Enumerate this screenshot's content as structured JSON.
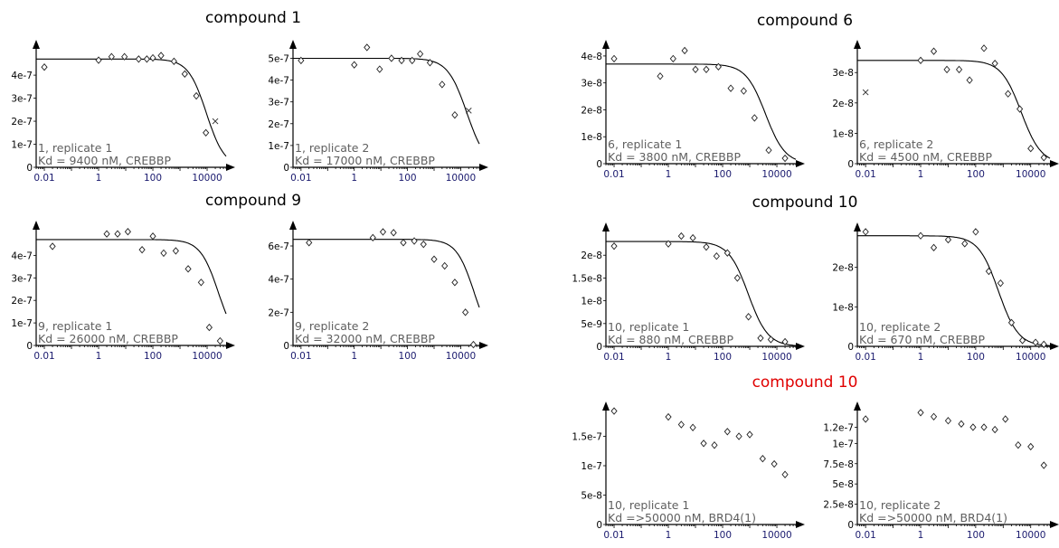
{
  "colors": {
    "title": "#000000",
    "title_alert": "#e00000",
    "annotation": "#5f5f5f",
    "axis": "#000000",
    "tick_label": "#1a1a6e"
  },
  "groups": [
    {
      "title": "compound 1",
      "color": "#000000"
    },
    {
      "title": "compound 6",
      "color": "#000000"
    },
    {
      "title": "compound 9",
      "color": "#000000"
    },
    {
      "title": "compound 10",
      "color": "#000000"
    },
    {
      "title": "compound 10",
      "color": "#e00000"
    }
  ],
  "chart_data": [
    {
      "type": "scatter",
      "group": "compound 1",
      "scale_x": "log",
      "xlim": [
        0.005,
        50000
      ],
      "ylim": [
        0,
        5.3e-07
      ],
      "xticks": [
        0.01,
        1,
        100,
        10000
      ],
      "xtick_labels": [
        "0.01",
        "1",
        "100",
        "10000"
      ],
      "yticks": [
        0,
        1e-07,
        2e-07,
        3e-07,
        4e-07
      ],
      "ytick_labels": [
        "0",
        "1e-7",
        "2e-7",
        "3e-7",
        "4e-7"
      ],
      "annotation": [
        "1,  replicate 1",
        "Kd =  9400 nM, CREBBP"
      ],
      "points": [
        [
          0.01,
          4.35e-07
        ],
        [
          1,
          4.65e-07
        ],
        [
          3,
          4.8e-07
        ],
        [
          9,
          4.8e-07
        ],
        [
          30,
          4.7e-07
        ],
        [
          60,
          4.7e-07
        ],
        [
          100,
          4.75e-07
        ],
        [
          200,
          4.85e-07
        ],
        [
          600,
          4.6e-07
        ],
        [
          1500,
          4.05e-07
        ],
        [
          4000,
          3.1e-07
        ],
        [
          9000,
          1.5e-07
        ],
        [
          20000,
          2e-07
        ]
      ],
      "outliers": [
        [
          20000,
          2e-07
        ]
      ],
      "curve": {
        "top": 4.7e-07,
        "bottom": 0,
        "ic50": 9400,
        "hill": 1.3
      }
    },
    {
      "type": "scatter",
      "group": "compound 1",
      "scale_x": "log",
      "xlim": [
        0.005,
        50000
      ],
      "ylim": [
        0,
        5.6e-07
      ],
      "xticks": [
        0.01,
        1,
        100,
        10000
      ],
      "xtick_labels": [
        "0.01",
        "1",
        "100",
        "10000"
      ],
      "yticks": [
        0,
        1e-07,
        2e-07,
        3e-07,
        4e-07,
        5e-07
      ],
      "ytick_labels": [
        "0",
        "1e-7",
        "2e-7",
        "3e-7",
        "4e-7",
        "5e-7"
      ],
      "annotation": [
        "1,  replicate 2",
        "Kd = 17000 nM, CREBBP"
      ],
      "points": [
        [
          0.01,
          4.9e-07
        ],
        [
          1,
          4.7e-07
        ],
        [
          3,
          5.5e-07
        ],
        [
          9,
          4.5e-07
        ],
        [
          25,
          5e-07
        ],
        [
          60,
          4.9e-07
        ],
        [
          150,
          4.9e-07
        ],
        [
          300,
          5.2e-07
        ],
        [
          700,
          4.8e-07
        ],
        [
          2000,
          3.8e-07
        ],
        [
          6000,
          2.4e-07
        ],
        [
          20000,
          2.6e-07
        ]
      ],
      "outliers": [
        [
          20000,
          2.6e-07
        ]
      ],
      "curve": {
        "top": 5e-07,
        "bottom": 0,
        "ic50": 17000,
        "hill": 1.2
      }
    },
    {
      "type": "scatter",
      "group": "compound 6",
      "scale_x": "log",
      "xlim": [
        0.005,
        50000
      ],
      "ylim": [
        0,
        4.4e-08
      ],
      "xticks": [
        0.01,
        1,
        100,
        10000
      ],
      "xtick_labels": [
        "0.01",
        "1",
        "100",
        "10000"
      ],
      "yticks": [
        0,
        1e-08,
        2e-08,
        3e-08,
        4e-08
      ],
      "ytick_labels": [
        "0",
        "1e-8",
        "2e-8",
        "3e-8",
        "4e-8"
      ],
      "annotation": [
        "6,  replicate 1",
        "Kd =  3800 nM, CREBBP"
      ],
      "points": [
        [
          0.01,
          3.9e-08
        ],
        [
          0.5,
          3.25e-08
        ],
        [
          1.5,
          3.9e-08
        ],
        [
          4,
          4.2e-08
        ],
        [
          10,
          3.5e-08
        ],
        [
          25,
          3.5e-08
        ],
        [
          70,
          3.6e-08
        ],
        [
          200,
          2.8e-08
        ],
        [
          600,
          2.7e-08
        ],
        [
          1500,
          1.7e-08
        ],
        [
          5000,
          5e-09
        ],
        [
          20000,
          2e-09
        ]
      ],
      "outliers": [],
      "curve": {
        "top": 3.7e-08,
        "bottom": 0,
        "ic50": 3800,
        "hill": 1.2
      }
    },
    {
      "type": "scatter",
      "group": "compound 6",
      "scale_x": "log",
      "xlim": [
        0.005,
        50000
      ],
      "ylim": [
        0,
        3.9e-08
      ],
      "xticks": [
        0.01,
        1,
        100,
        10000
      ],
      "xtick_labels": [
        "0.01",
        "1",
        "100",
        "10000"
      ],
      "yticks": [
        0,
        1e-08,
        2e-08,
        3e-08
      ],
      "ytick_labels": [
        "0",
        "1e-8",
        "2e-8",
        "3e-8"
      ],
      "annotation": [
        "6,  replicate 2",
        "Kd =  4500 nM, CREBBP"
      ],
      "points": [
        [
          0.01,
          2.35e-08
        ],
        [
          1,
          3.4e-08
        ],
        [
          3,
          3.7e-08
        ],
        [
          9,
          3.1e-08
        ],
        [
          25,
          3.1e-08
        ],
        [
          60,
          2.75e-08
        ],
        [
          200,
          3.8e-08
        ],
        [
          500,
          3.3e-08
        ],
        [
          1500,
          2.3e-08
        ],
        [
          4000,
          1.8e-08
        ],
        [
          10000,
          5e-09
        ],
        [
          30000,
          2e-09
        ]
      ],
      "outliers": [
        [
          0.01,
          2.35e-08
        ]
      ],
      "curve": {
        "top": 3.4e-08,
        "bottom": 0,
        "ic50": 4500,
        "hill": 1.2
      }
    },
    {
      "type": "scatter",
      "group": "compound 9",
      "scale_x": "log",
      "xlim": [
        0.005,
        50000
      ],
      "ylim": [
        0,
        5.3e-07
      ],
      "xticks": [
        0.01,
        1,
        100,
        10000
      ],
      "xtick_labels": [
        "0.01",
        "1",
        "100",
        "10000"
      ],
      "yticks": [
        0,
        1e-07,
        2e-07,
        3e-07,
        4e-07
      ],
      "ytick_labels": [
        "0",
        "1e-7",
        "2e-7",
        "3e-7",
        "4e-7"
      ],
      "annotation": [
        "9,  replicate 1",
        "Kd = 26000 nM, CREBBP"
      ],
      "points": [
        [
          0.02,
          4.4e-07
        ],
        [
          2,
          4.95e-07
        ],
        [
          5,
          4.95e-07
        ],
        [
          12,
          5.05e-07
        ],
        [
          40,
          4.25e-07
        ],
        [
          100,
          4.85e-07
        ],
        [
          250,
          4.1e-07
        ],
        [
          700,
          4.2e-07
        ],
        [
          2000,
          3.4e-07
        ],
        [
          6000,
          2.8e-07
        ],
        [
          12000,
          8e-08
        ],
        [
          30000,
          2e-08
        ]
      ],
      "outliers": [],
      "curve": {
        "top": 4.7e-07,
        "bottom": 0,
        "ic50": 26000,
        "hill": 1.3
      }
    },
    {
      "type": "scatter",
      "group": "compound 9",
      "scale_x": "log",
      "xlim": [
        0.005,
        50000
      ],
      "ylim": [
        0,
        7.2e-07
      ],
      "xticks": [
        0.01,
        1,
        100,
        10000
      ],
      "xtick_labels": [
        "0.01",
        "1",
        "100",
        "10000"
      ],
      "yticks": [
        0,
        2e-07,
        4e-07,
        6e-07
      ],
      "ytick_labels": [
        "0",
        "2e-7",
        "4e-7",
        "6e-7"
      ],
      "annotation": [
        "9,  replicate 2",
        "Kd = 32000 nM, CREBBP"
      ],
      "points": [
        [
          0.02,
          6.2e-07
        ],
        [
          5,
          6.5e-07
        ],
        [
          12,
          6.85e-07
        ],
        [
          30,
          6.8e-07
        ],
        [
          70,
          6.2e-07
        ],
        [
          180,
          6.3e-07
        ],
        [
          400,
          6.1e-07
        ],
        [
          1000,
          5.2e-07
        ],
        [
          2500,
          4.8e-07
        ],
        [
          6000,
          3.8e-07
        ],
        [
          15000,
          2e-07
        ],
        [
          30000,
          5e-09
        ]
      ],
      "outliers": [],
      "curve": {
        "top": 6.4e-07,
        "bottom": 0,
        "ic50": 32000,
        "hill": 1.3
      }
    },
    {
      "type": "scatter",
      "group": "compound 10",
      "scale_x": "log",
      "xlim": [
        0.005,
        50000
      ],
      "ylim": [
        0,
        2.6e-08
      ],
      "xticks": [
        0.01,
        1,
        100,
        10000
      ],
      "xtick_labels": [
        "0.01",
        "1",
        "100",
        "10000"
      ],
      "yticks": [
        0,
        5e-09,
        1e-08,
        1.5e-08,
        2e-08
      ],
      "ytick_labels": [
        "0",
        "5e-9",
        "1e-8",
        "1.5e-8",
        "2e-8"
      ],
      "annotation": [
        "10,  replicate 1",
        "Kd =   880 nM, CREBBP"
      ],
      "points": [
        [
          0.01,
          2.2e-08
        ],
        [
          1,
          2.25e-08
        ],
        [
          3,
          2.42e-08
        ],
        [
          8,
          2.38e-08
        ],
        [
          25,
          2.18e-08
        ],
        [
          60,
          1.98e-08
        ],
        [
          150,
          2.05e-08
        ],
        [
          350,
          1.5e-08
        ],
        [
          900,
          6.5e-09
        ],
        [
          2500,
          1.8e-09
        ],
        [
          6000,
          1.5e-09
        ],
        [
          20000,
          1e-09
        ]
      ],
      "outliers": [],
      "curve": {
        "top": 2.3e-08,
        "bottom": 0,
        "ic50": 880,
        "hill": 1.2
      }
    },
    {
      "type": "scatter",
      "group": "compound 10",
      "scale_x": "log",
      "xlim": [
        0.005,
        50000
      ],
      "ylim": [
        0,
        3e-08
      ],
      "xticks": [
        0.01,
        1,
        100,
        10000
      ],
      "xtick_labels": [
        "0.01",
        "1",
        "100",
        "10000"
      ],
      "yticks": [
        0,
        1e-08,
        2e-08
      ],
      "ytick_labels": [
        "0",
        "1e-8",
        "2e-8"
      ],
      "annotation": [
        "10,  replicate 2",
        "Kd =   670 nM, CREBBP"
      ],
      "points": [
        [
          0.01,
          2.9e-08
        ],
        [
          1,
          2.8e-08
        ],
        [
          3,
          2.5e-08
        ],
        [
          10,
          2.7e-08
        ],
        [
          40,
          2.6e-08
        ],
        [
          100,
          2.9e-08
        ],
        [
          300,
          1.9e-08
        ],
        [
          800,
          1.6e-08
        ],
        [
          2000,
          6e-09
        ],
        [
          5000,
          1.5e-09
        ],
        [
          15000,
          1e-09
        ],
        [
          30000,
          5e-10
        ]
      ],
      "outliers": [],
      "curve": {
        "top": 2.8e-08,
        "bottom": 0,
        "ic50": 670,
        "hill": 1.2
      }
    },
    {
      "type": "scatter",
      "group": "compound 10",
      "scale_x": "log",
      "xlim": [
        0.005,
        50000
      ],
      "ylim": [
        0,
        2e-07
      ],
      "xticks": [
        0.01,
        1,
        100,
        10000
      ],
      "xtick_labels": [
        "0.01",
        "1",
        "100",
        "10000"
      ],
      "yticks": [
        0,
        5e-08,
        1e-07,
        1.5e-07
      ],
      "ytick_labels": [
        "0",
        "5e-8",
        "1e-7",
        "1.5e-7"
      ],
      "annotation": [
        "10,  replicate 1",
        "Kd =>50000 nM, BRD4(1)"
      ],
      "points": [
        [
          0.01,
          1.93e-07
        ],
        [
          1,
          1.83e-07
        ],
        [
          3,
          1.7e-07
        ],
        [
          8,
          1.65e-07
        ],
        [
          20,
          1.38e-07
        ],
        [
          50,
          1.35e-07
        ],
        [
          150,
          1.58e-07
        ],
        [
          400,
          1.5e-07
        ],
        [
          1000,
          1.53e-07
        ],
        [
          3000,
          1.12e-07
        ],
        [
          8000,
          1.03e-07
        ],
        [
          20000,
          8.5e-08
        ]
      ],
      "outliers": [],
      "curve": null
    },
    {
      "type": "scatter",
      "group": "compound 10",
      "scale_x": "log",
      "xlim": [
        0.005,
        50000
      ],
      "ylim": [
        0,
        1.45e-07
      ],
      "xticks": [
        0.01,
        1,
        100,
        10000
      ],
      "xtick_labels": [
        "0.01",
        "1",
        "100",
        "10000"
      ],
      "yticks": [
        0,
        2.5e-08,
        5e-08,
        7.5e-08,
        1e-07,
        1.2e-07
      ],
      "ytick_labels": [
        "0",
        "2.5e-8",
        "5e-8",
        "7.5e-8",
        "1e-7",
        "1.2e-7"
      ],
      "annotation": [
        "10,  replicate 2",
        "Kd =>50000 nM, BRD4(1)"
      ],
      "points": [
        [
          0.01,
          1.3e-07
        ],
        [
          1,
          1.38e-07
        ],
        [
          3,
          1.33e-07
        ],
        [
          10,
          1.28e-07
        ],
        [
          30,
          1.24e-07
        ],
        [
          80,
          1.2e-07
        ],
        [
          200,
          1.2e-07
        ],
        [
          500,
          1.17e-07
        ],
        [
          1200,
          1.3e-07
        ],
        [
          3500,
          9.8e-08
        ],
        [
          10000,
          9.6e-08
        ],
        [
          30000,
          7.3e-08
        ]
      ],
      "outliers": [],
      "curve": null
    }
  ]
}
